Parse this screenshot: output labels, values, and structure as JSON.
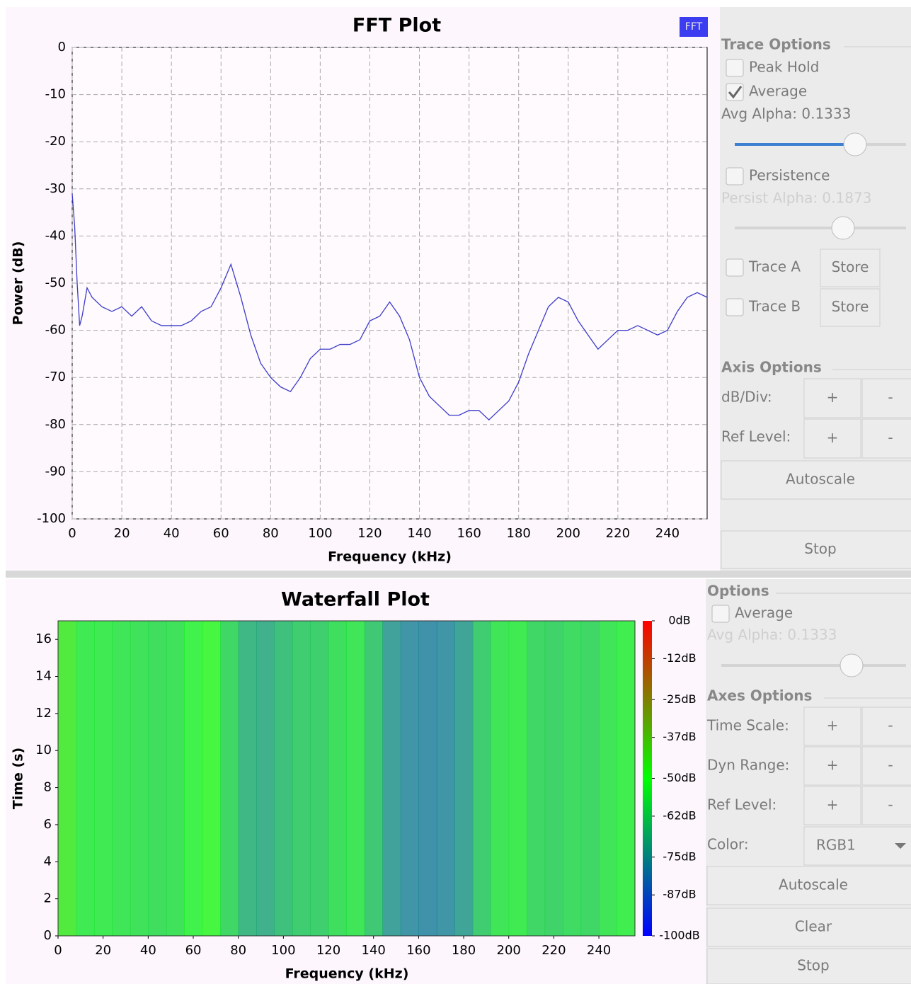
{
  "chart_data": [
    {
      "type": "line",
      "title": "FFT Plot",
      "xlabel": "Frequency (kHz)",
      "ylabel": "Power (dB)",
      "series": [
        {
          "name": "FFT",
          "color": "#3c3cc8",
          "x": [
            0,
            1,
            2,
            3,
            4,
            6,
            8,
            12,
            16,
            20,
            24,
            28,
            32,
            36,
            40,
            44,
            48,
            52,
            56,
            60,
            64,
            68,
            72,
            76,
            80,
            84,
            88,
            92,
            96,
            100,
            104,
            108,
            112,
            116,
            120,
            124,
            128,
            132,
            136,
            140,
            144,
            148,
            152,
            156,
            160,
            164,
            168,
            172,
            176,
            180,
            184,
            188,
            192,
            196,
            200,
            204,
            208,
            212,
            216,
            220,
            224,
            228,
            232,
            236,
            240,
            244,
            248,
            252,
            256
          ],
          "values": [
            -31,
            -38,
            -50,
            -59,
            -57,
            -51,
            -53,
            -55,
            -56,
            -55,
            -57,
            -55,
            -58,
            -59,
            -59,
            -59,
            -58,
            -56,
            -55,
            -51,
            -46,
            -53,
            -61,
            -67,
            -70,
            -72,
            -73,
            -70,
            -66,
            -64,
            -64,
            -63,
            -63,
            -62,
            -58,
            -57,
            -54,
            -57,
            -62,
            -70,
            -74,
            -76,
            -78,
            -78,
            -77,
            -77,
            -79,
            -77,
            -75,
            -71,
            -65,
            -60,
            -55,
            -53,
            -54,
            -58,
            -61,
            -64,
            -62,
            -60,
            -60,
            -59,
            -60,
            -61,
            -60,
            -56,
            -53,
            -52,
            -53
          ]
        }
      ],
      "legend_color": "#3c3cf0",
      "xlim": [
        0,
        256
      ],
      "ylim": [
        -100,
        0
      ],
      "xticks": [
        0,
        20,
        40,
        60,
        80,
        100,
        120,
        140,
        160,
        180,
        200,
        220,
        240
      ],
      "yticks": [
        0,
        -10,
        -20,
        -30,
        -40,
        -50,
        -60,
        -70,
        -80,
        -90,
        -100
      ],
      "grid": true
    },
    {
      "type": "heatmap",
      "title": "Waterfall Plot",
      "xlabel": "Frequency (kHz)",
      "ylabel": "Time (s)",
      "x": [
        0,
        8,
        16,
        24,
        32,
        40,
        48,
        56,
        64,
        72,
        80,
        88,
        96,
        104,
        112,
        120,
        128,
        136,
        144,
        152,
        160,
        168,
        176,
        184,
        192,
        200,
        208,
        216,
        224,
        232,
        240,
        248
      ],
      "values": [
        -45,
        -55,
        -55,
        -56,
        -57,
        -58,
        -57,
        -53,
        -48,
        -60,
        -68,
        -70,
        -66,
        -63,
        -62,
        -58,
        -56,
        -64,
        -74,
        -77,
        -78,
        -77,
        -73,
        -63,
        -56,
        -55,
        -60,
        -61,
        -59,
        -60,
        -56,
        -54
      ],
      "xlim": [
        0,
        256
      ],
      "ylim": [
        0,
        17
      ],
      "xticks": [
        0,
        20,
        40,
        60,
        80,
        100,
        120,
        140,
        160,
        180,
        200,
        220,
        240
      ],
      "yticks": [
        0,
        2,
        4,
        6,
        8,
        10,
        12,
        14,
        16
      ],
      "colorscale": [
        "#0000ff",
        "#00ff00",
        "#ff0000"
      ],
      "clim": [
        -100,
        0
      ],
      "cticks": [
        {
          "value": 0,
          "label": "0dB"
        },
        {
          "value": -12,
          "label": "-12dB"
        },
        {
          "value": -25,
          "label": "-25dB"
        },
        {
          "value": -37,
          "label": "-37dB"
        },
        {
          "value": -50,
          "label": "-50dB"
        },
        {
          "value": -62,
          "label": "-62dB"
        },
        {
          "value": -75,
          "label": "-75dB"
        },
        {
          "value": -87,
          "label": "-87dB"
        },
        {
          "value": -100,
          "label": "-100dB"
        }
      ]
    }
  ],
  "fft_controls": {
    "trace_title": "Trace Options",
    "peak_hold": {
      "label": "Peak Hold",
      "checked": false
    },
    "average": {
      "label": "Average",
      "checked": true
    },
    "avg_alpha": "Avg Alpha: 0.1333",
    "persistence": {
      "label": "Persistence",
      "checked": false
    },
    "persist_alpha": "Persist Alpha: 0.1873",
    "trace_a": {
      "label": "Trace A",
      "checked": false,
      "button": "Store"
    },
    "trace_b": {
      "label": "Trace B",
      "checked": false,
      "button": "Store"
    },
    "axis_title": "Axis Options",
    "db_div": {
      "label": "dB/Div:",
      "plus": "+",
      "minus": "-"
    },
    "ref_level": {
      "label": "Ref Level:",
      "plus": "+",
      "minus": "-"
    },
    "autoscale": "Autoscale",
    "stop": "Stop"
  },
  "waterfall_controls": {
    "options_title": "Options",
    "average": {
      "label": "Average",
      "checked": false
    },
    "avg_alpha": "Avg Alpha: 0.1333",
    "axes_title": "Axes Options",
    "time_scale": {
      "label": "Time Scale:",
      "plus": "+",
      "minus": "-"
    },
    "dyn_range": {
      "label": "Dyn Range:",
      "plus": "+",
      "minus": "-"
    },
    "ref_level": {
      "label": "Ref Level:",
      "plus": "+",
      "minus": "-"
    },
    "color": {
      "label": "Color:",
      "value": "RGB1"
    },
    "autoscale": "Autoscale",
    "clear": "Clear",
    "stop": "Stop"
  }
}
